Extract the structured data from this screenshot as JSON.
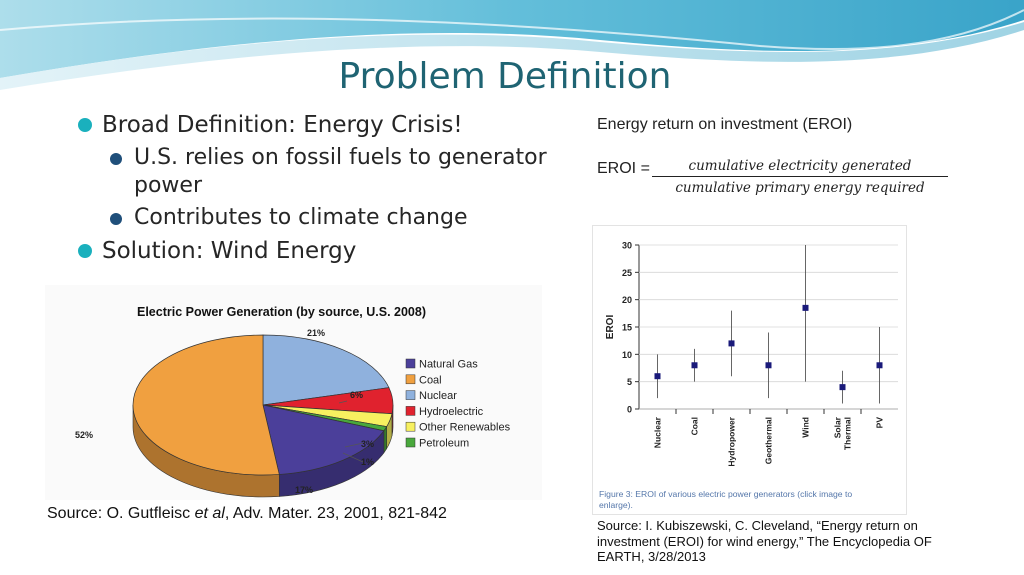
{
  "slide": {
    "title": "Problem Definition",
    "bullets": {
      "b1": "Broad Definition: Energy Crisis!",
      "b1a": "U.S. relies on fossil fuels to generator power",
      "b1b": "Contributes to climate change",
      "b2": "Solution: Wind Energy"
    },
    "colors": {
      "accent": "#1f6473",
      "bullet": "#1ab0bd",
      "wave": "#4fb8d6"
    }
  },
  "pie_source": {
    "prefix": "Source: O. Gutfleisc ",
    "italic": "et al",
    "suffix": ", Adv. Mater. 23, 2001, 821-842"
  },
  "eroi": {
    "heading": "Energy return on investment (EROI)",
    "eq_label": "EROI =",
    "numerator": "cumulative electricity generated",
    "denominator": "cumulative primary energy required",
    "source": "Source: I. Kubiszewski, C. Cleveland, “Energy return on investment (EROI) for wind energy,” The Encyclopedia OF EARTH, 3/28/2013"
  },
  "chart_data": [
    {
      "type": "pie",
      "title": "Electric Power Generation (by source, U.S. 2008)",
      "categories": [
        "Natural Gas",
        "Coal",
        "Nuclear",
        "Hydroelectric",
        "Other Renewables",
        "Petroleum"
      ],
      "values": [
        17,
        52,
        21,
        6,
        3,
        1
      ],
      "labels": [
        "17%",
        "52%",
        "21%",
        "6%",
        "3%",
        "1%"
      ],
      "colors": [
        "#4b3f9a",
        "#f0a040",
        "#8fb1dd",
        "#e0222e",
        "#f7f060",
        "#49a83c"
      ],
      "legend": "right"
    },
    {
      "type": "scatter",
      "ylabel": "EROI",
      "categories": [
        "Nuclear",
        "Coal",
        "Hydropower",
        "Geothermal",
        "Wind",
        "Solar Thermal",
        "PV"
      ],
      "values": [
        6,
        8,
        12,
        8,
        18.5,
        4,
        8
      ],
      "ranges": [
        [
          2,
          10
        ],
        [
          5,
          11
        ],
        [
          6,
          18
        ],
        [
          2,
          14
        ],
        [
          5,
          30
        ],
        [
          1,
          7
        ],
        [
          1,
          15
        ]
      ],
      "ylim": [
        0,
        30
      ],
      "yticks": [
        0,
        5,
        10,
        15,
        20,
        25,
        30
      ],
      "caption": "Figure 3: EROI of various electric power generators (click image to enlarge).",
      "marker_color": "#1a1a7a"
    }
  ]
}
